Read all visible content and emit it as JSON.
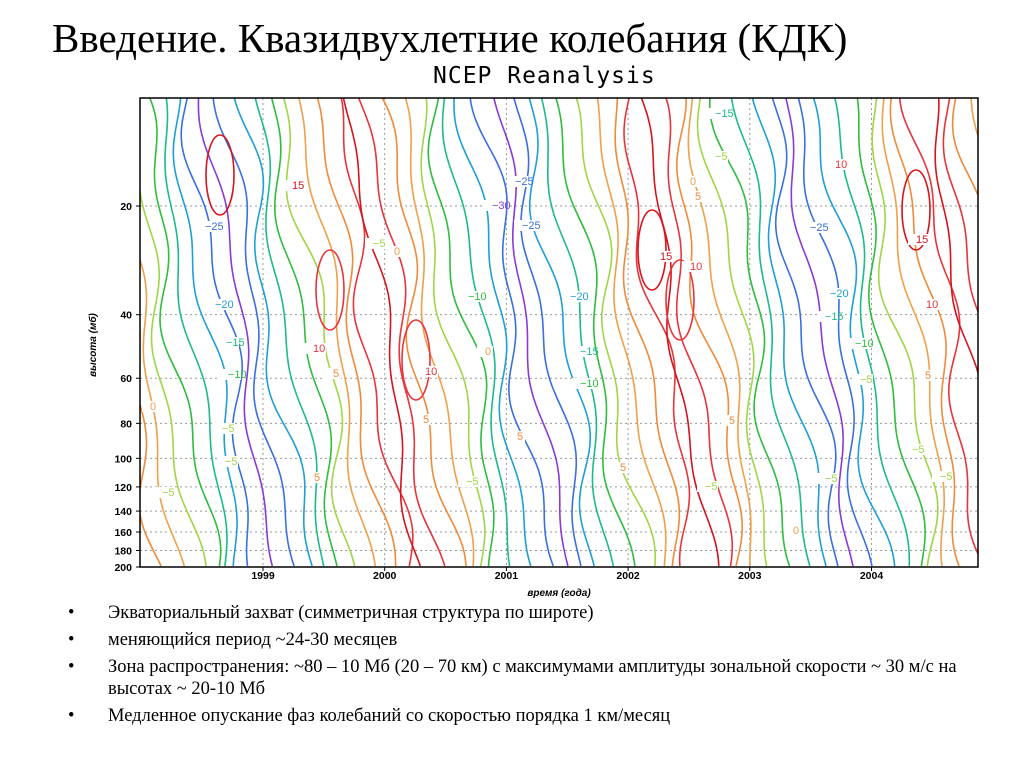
{
  "slide": {
    "title": "Введение. Квазидвухлетние колебания (КДК)"
  },
  "bullets": [
    {
      "text": "Экваториальный захват (симметричная структура по широте)"
    },
    {
      "text": "меняющийся период   ~24-30 месяцев"
    },
    {
      "text": "Зона распространения: ~80 – 10 Мб (20 – 70 км) с максимумами амплитуды зональной скорости ~ 30 м/с на высотах ~ 20-10 Мб"
    },
    {
      "text": "Медленное опускание фаз колебаний со скоростью порядка 1 км/месяц"
    }
  ],
  "chart_data": {
    "type": "contour",
    "title": "NCEP Reanalysis",
    "xlabel": "время (года)",
    "ylabel": "высота (мб)",
    "x_ticks": [
      "1999",
      "2000",
      "2001",
      "2002",
      "2003",
      "2004"
    ],
    "y_ticks": [
      20,
      40,
      60,
      80,
      100,
      120,
      140,
      160,
      180,
      200
    ],
    "y_scale": "log",
    "y_reversed": true,
    "grid": true,
    "contour_levels": [
      -30,
      -25,
      -20,
      -15,
      -10,
      -5,
      0,
      5,
      10,
      15
    ],
    "contour_labels": [
      "15",
      "10",
      "5",
      "0",
      "-5",
      "-10",
      "-15",
      "-20",
      "-25",
      "-30"
    ],
    "colors": {
      "15": "#d6141e",
      "10": "#e8343a",
      "5": "#f08a3a",
      "0": "#f0a04a",
      "-5": "#9fd646",
      "-10": "#2ebd3c",
      "-15": "#1dbb8a",
      "-20": "#1e9fd8",
      "-25": "#3a6fe0",
      "-30": "#8a3ad8"
    }
  }
}
